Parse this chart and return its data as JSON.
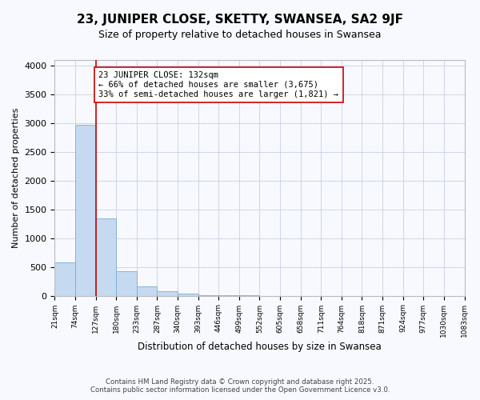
{
  "title": "23, JUNIPER CLOSE, SKETTY, SWANSEA, SA2 9JF",
  "subtitle": "Size of property relative to detached houses in Swansea",
  "xlabel": "Distribution of detached houses by size in Swansea",
  "ylabel": "Number of detached properties",
  "bar_values": [
    580,
    2970,
    1340,
    430,
    160,
    75,
    35,
    10,
    5,
    2,
    1,
    0,
    0,
    0,
    0,
    0,
    0,
    0,
    0,
    0
  ],
  "bin_labels": [
    "21sqm",
    "74sqm",
    "127sqm",
    "180sqm",
    "233sqm",
    "287sqm",
    "340sqm",
    "393sqm",
    "446sqm",
    "499sqm",
    "552sqm",
    "605sqm",
    "658sqm",
    "711sqm",
    "764sqm",
    "818sqm",
    "871sqm",
    "924sqm",
    "977sqm",
    "1030sqm",
    "1083sqm"
  ],
  "bar_color": "#c5d9f0",
  "bar_edge_color": "#7baed4",
  "vline_position": 2,
  "vline_color": "#cc0000",
  "annotation_text": "23 JUNIPER CLOSE: 132sqm\n← 66% of detached houses are smaller (3,675)\n33% of semi-detached houses are larger (1,821) →",
  "annotation_box_facecolor": "#ffffff",
  "annotation_box_edgecolor": "#cc0000",
  "ylim": [
    0,
    4100
  ],
  "yticks": [
    0,
    500,
    1000,
    1500,
    2000,
    2500,
    3000,
    3500,
    4000
  ],
  "footer1": "Contains HM Land Registry data © Crown copyright and database right 2025.",
  "footer2": "Contains public sector information licensed under the Open Government Licence v3.0.",
  "bg_color": "#f8f9ff",
  "grid_color": "#c8d0e8",
  "title_fontsize": 11,
  "subtitle_fontsize": 9
}
